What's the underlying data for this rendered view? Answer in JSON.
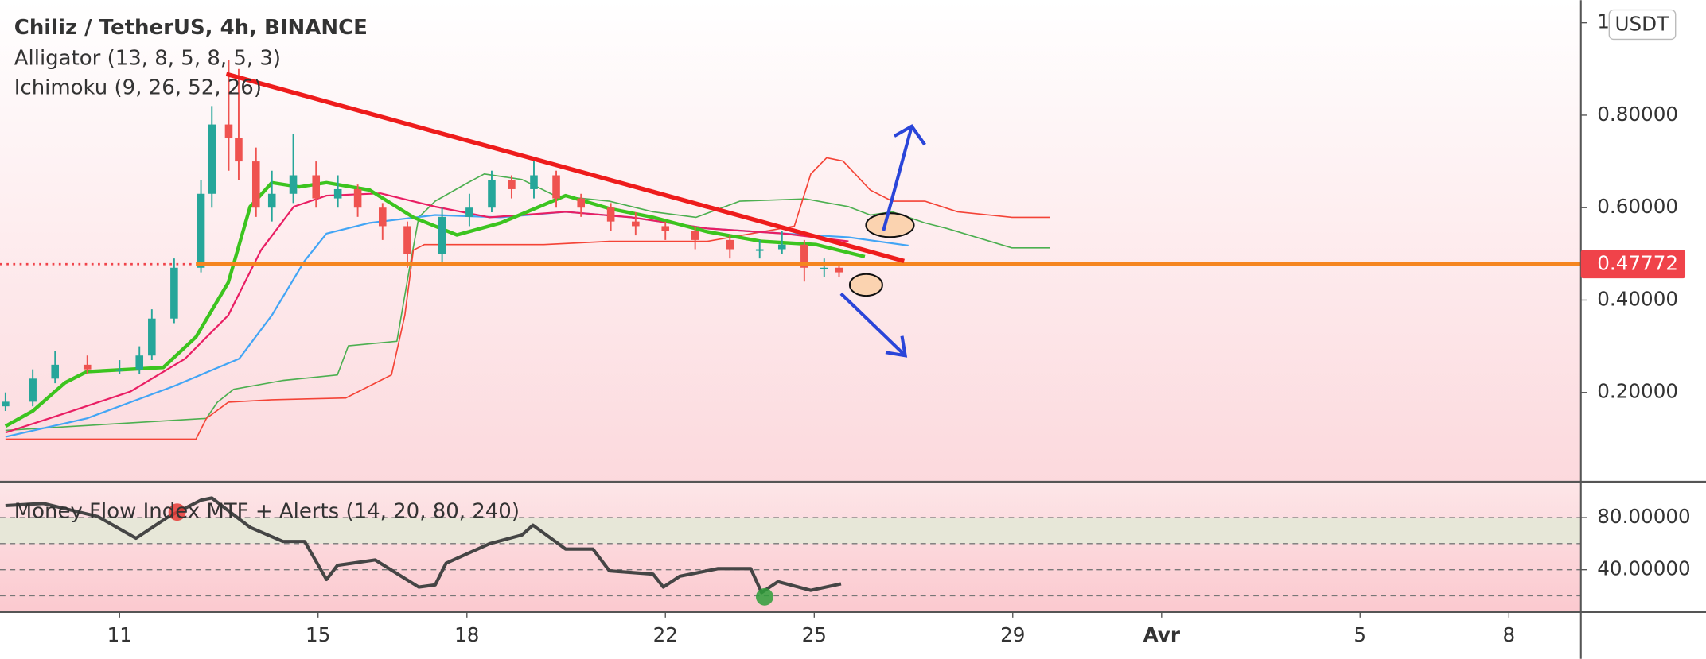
{
  "chart_data": [
    {
      "type": "candlestick",
      "title": "Chiliz / TetherUS, 4h, BINANCE",
      "subtitles": [
        "Alligator (13, 8, 5, 8, 5, 3)",
        "Ichimoku (9, 26, 52, 26)"
      ],
      "unit": "USDT",
      "xlim": [
        8.59,
        40.45
      ],
      "ylim": [
        0.007,
        1.049
      ],
      "yticks": [
        {
          "value": 0.2,
          "label": "0.20000"
        },
        {
          "value": 0.4,
          "label": "0.40000"
        },
        {
          "value": 0.6,
          "label": "0.60000"
        },
        {
          "value": 0.8,
          "label": "0.80000"
        },
        1
      ],
      "last_price": 0.47772,
      "last_price_color": "#f0434a",
      "level_color": "#f5851f",
      "up_color": "#26a69a",
      "down_color": "#ef5350",
      "candles": {
        "x": [
          8.7,
          9.25,
          9.7,
          10.35,
          11.0,
          11.4,
          11.65,
          12.1,
          12.64,
          12.86,
          13.2,
          13.4,
          13.75,
          14.07,
          14.5,
          14.96,
          15.4,
          15.8,
          16.3,
          16.8,
          17.5,
          18.05,
          18.5,
          18.9,
          19.35,
          19.8,
          20.3,
          20.9,
          21.4,
          22.0,
          22.6,
          23.3,
          23.9,
          24.35,
          24.8,
          25.2,
          25.5
        ],
        "open": [
          0.17,
          0.18,
          0.23,
          0.26,
          0.25,
          0.25,
          0.28,
          0.36,
          0.47,
          0.63,
          0.78,
          0.75,
          0.7,
          0.6,
          0.63,
          0.67,
          0.62,
          0.64,
          0.6,
          0.56,
          0.5,
          0.58,
          0.6,
          0.66,
          0.64,
          0.67,
          0.62,
          0.6,
          0.57,
          0.56,
          0.55,
          0.53,
          0.51,
          0.51,
          0.52,
          0.47,
          0.47
        ],
        "high": [
          0.2,
          0.25,
          0.29,
          0.28,
          0.27,
          0.3,
          0.38,
          0.49,
          0.66,
          0.82,
          0.92,
          0.9,
          0.73,
          0.68,
          0.76,
          0.7,
          0.67,
          0.65,
          0.61,
          0.57,
          0.6,
          0.63,
          0.68,
          0.67,
          0.71,
          0.68,
          0.63,
          0.61,
          0.59,
          0.57,
          0.56,
          0.54,
          0.53,
          0.55,
          0.53,
          0.49,
          0.48
        ],
        "low": [
          0.16,
          0.17,
          0.22,
          0.24,
          0.24,
          0.24,
          0.27,
          0.35,
          0.46,
          0.6,
          0.68,
          0.66,
          0.58,
          0.57,
          0.61,
          0.6,
          0.6,
          0.58,
          0.53,
          0.47,
          0.48,
          0.56,
          0.59,
          0.62,
          0.62,
          0.6,
          0.58,
          0.55,
          0.54,
          0.53,
          0.51,
          0.49,
          0.49,
          0.5,
          0.44,
          0.45,
          0.45
        ],
        "close": [
          0.18,
          0.23,
          0.26,
          0.25,
          0.25,
          0.28,
          0.36,
          0.47,
          0.63,
          0.78,
          0.75,
          0.7,
          0.6,
          0.63,
          0.67,
          0.62,
          0.64,
          0.6,
          0.56,
          0.5,
          0.58,
          0.6,
          0.66,
          0.64,
          0.67,
          0.62,
          0.6,
          0.57,
          0.56,
          0.55,
          0.53,
          0.51,
          0.51,
          0.52,
          0.47,
          0.47,
          0.46
        ]
      },
      "overlays": [
        {
          "color": "#4caf50",
          "width": 1.2,
          "x": [
            8.7,
            12.75,
            12.97,
            13.3,
            14.29,
            15.39,
            15.61,
            16.59,
            16.81,
            17.03,
            17.36,
            18.02,
            18.35,
            19.11,
            19.77,
            20.87,
            21.75,
            22.62,
            23.5,
            24.82,
            25.69,
            26.13,
            26.57,
            27.23,
            27.67,
            28.98,
            29.75
          ],
          "values": [
            0.118,
            0.144,
            0.179,
            0.207,
            0.226,
            0.238,
            0.301,
            0.311,
            0.449,
            0.579,
            0.614,
            0.654,
            0.673,
            0.661,
            0.626,
            0.614,
            0.591,
            0.579,
            0.614,
            0.619,
            0.602,
            0.584,
            0.591,
            0.567,
            0.555,
            0.513,
            0.513
          ]
        },
        {
          "color": "#f44336",
          "width": 1.2,
          "x": [
            8.7,
            12.54,
            12.75,
            13.19,
            14.07,
            15.56,
            16.48,
            16.75,
            16.92,
            17.14,
            19.55,
            20.87,
            22.84,
            24.6,
            24.93,
            25.25,
            25.58,
            26.13,
            26.57,
            27.23,
            27.89,
            28.98,
            29.75
          ],
          "values": [
            0.099,
            0.099,
            0.144,
            0.179,
            0.184,
            0.188,
            0.238,
            0.367,
            0.508,
            0.52,
            0.52,
            0.527,
            0.527,
            0.56,
            0.673,
            0.708,
            0.701,
            0.638,
            0.614,
            0.614,
            0.591,
            0.579,
            0.579
          ]
        },
        {
          "color": "#42a5f5",
          "width": 1.6,
          "x": [
            8.7,
            10.34,
            12.1,
            13.41,
            14.07,
            14.73,
            15.17,
            16.04,
            17.36,
            18.68,
            19.99,
            21.31,
            22.84,
            24.38,
            25.69,
            26.9
          ],
          "values": [
            0.104,
            0.144,
            0.214,
            0.273,
            0.367,
            0.485,
            0.544,
            0.567,
            0.584,
            0.579,
            0.591,
            0.579,
            0.555,
            0.544,
            0.536,
            0.518
          ]
        },
        {
          "color": "#e91e63",
          "width": 1.6,
          "x": [
            8.7,
            9.9,
            11.22,
            12.32,
            13.19,
            13.85,
            14.51,
            15.17,
            16.26,
            17.36,
            18.46,
            19.99,
            21.31,
            22.84,
            24.38,
            25.69
          ],
          "values": [
            0.113,
            0.155,
            0.202,
            0.273,
            0.367,
            0.508,
            0.602,
            0.626,
            0.631,
            0.602,
            0.579,
            0.591,
            0.579,
            0.555,
            0.544,
            0.527
          ]
        },
        {
          "color": "#3cc41f",
          "width": 3.2,
          "x": [
            8.7,
            9.25,
            9.9,
            10.34,
            11.88,
            12.54,
            13.19,
            13.63,
            14.07,
            14.62,
            15.17,
            16.04,
            16.92,
            17.8,
            18.68,
            19.99,
            20.87,
            21.75,
            22.84,
            23.94,
            25.04,
            26.02
          ],
          "values": [
            0.127,
            0.16,
            0.221,
            0.245,
            0.254,
            0.32,
            0.438,
            0.602,
            0.654,
            0.645,
            0.654,
            0.638,
            0.579,
            0.541,
            0.567,
            0.626,
            0.598,
            0.579,
            0.548,
            0.527,
            0.52,
            0.494
          ]
        }
      ]
    },
    {
      "type": "line",
      "title": "Money Flow Index MTF + Alerts (14, 20, 80, 240)",
      "xlim": [
        8.59,
        40.45
      ],
      "xticks": [
        11,
        15,
        18,
        22,
        25,
        29,
        {
          "value": 32,
          "label": "Avr"
        },
        {
          "value": 36,
          "label": "5"
        },
        {
          "value": 39,
          "label": "8"
        }
      ],
      "ylim": [
        7.5,
        107.5
      ],
      "yticks": [
        {
          "value": 40,
          "label": "40.00000"
        },
        {
          "value": 80,
          "label": "80.00000"
        }
      ],
      "levels": [
        80,
        60,
        40,
        20
      ],
      "color": "#454545",
      "x": [
        8.7,
        9.46,
        10.56,
        11.33,
        11.99,
        12.64,
        12.86,
        13.63,
        14.29,
        14.73,
        15.17,
        15.39,
        16.15,
        17.03,
        17.36,
        17.58,
        18.46,
        19.11,
        19.33,
        19.99,
        20.54,
        20.87,
        21.75,
        21.96,
        22.29,
        23.06,
        23.72,
        23.94,
        24.27,
        24.93,
        25.54
      ],
      "values": [
        89.2,
        90.8,
        80.8,
        64.2,
        80.8,
        93.3,
        95.0,
        72.5,
        61.7,
        61.7,
        32.5,
        43.3,
        47.5,
        26.7,
        28.3,
        45.0,
        60.0,
        66.7,
        74.2,
        55.8,
        55.8,
        39.2,
        36.7,
        26.7,
        35.0,
        40.8,
        40.8,
        22.5,
        30.8,
        24.2,
        29.2
      ],
      "alerts": [
        {
          "x": 12.16,
          "value": 84.2,
          "color": "#e53935"
        },
        {
          "x": 24.0,
          "value": 19.2,
          "color": "#2e9e3a"
        }
      ]
    }
  ]
}
